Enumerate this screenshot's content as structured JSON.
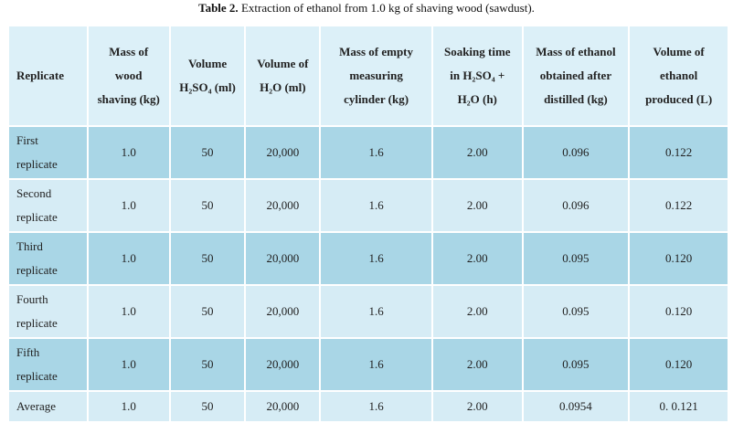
{
  "caption": {
    "label": "Table 2.",
    "text": "Extraction of ethanol from 1.0 kg of shaving wood (sawdust)."
  },
  "table": {
    "header": [
      "Replicate",
      "Mass of wood shaving (kg)",
      "Volume H₂SO₄ (ml)",
      "Volume of H₂O (ml)",
      "Mass of empty measuring cylinder (kg)",
      "Soaking time in H₂SO₄ + H₂O (h)",
      "Mass of ethanol obtained after distilled (kg)",
      "Volume of ethanol produced (L)"
    ],
    "rows": [
      [
        "First replicate",
        "1.0",
        "50",
        "20,000",
        "1.6",
        "2.00",
        "0.096",
        "0.122"
      ],
      [
        "Second replicate",
        "1.0",
        "50",
        "20,000",
        "1.6",
        "2.00",
        "0.096",
        "0.122"
      ],
      [
        "Third replicate",
        "1.0",
        "50",
        "20,000",
        "1.6",
        "2.00",
        "0.095",
        "0.120"
      ],
      [
        "Fourth replicate",
        "1.0",
        "50",
        "20,000",
        "1.6",
        "2.00",
        "0.095",
        "0.120"
      ],
      [
        "Fifth replicate",
        "1.0",
        "50",
        "20,000",
        "1.6",
        "2.00",
        "0.095",
        "0.120"
      ],
      [
        "Average",
        "1.0",
        "50",
        "20,000",
        "1.6",
        "2.00",
        "0.0954",
        "0. 0.121"
      ]
    ]
  }
}
